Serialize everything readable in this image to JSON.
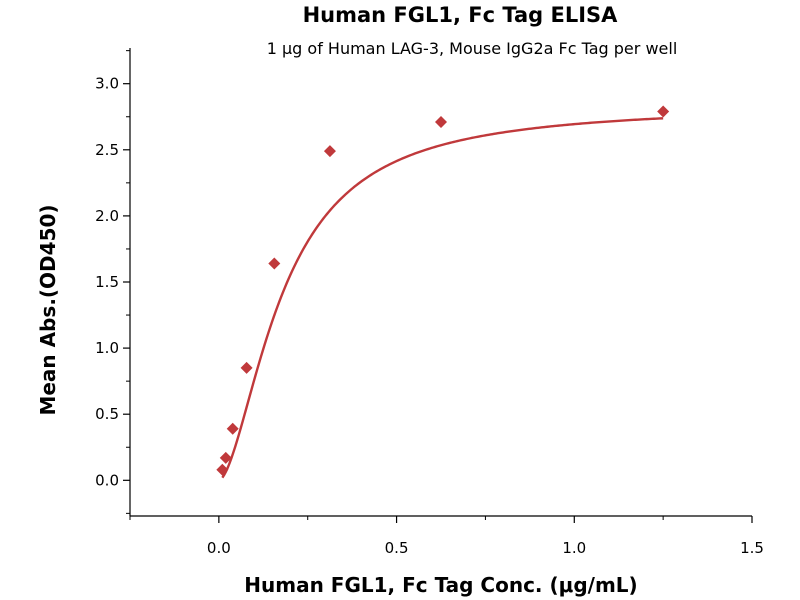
{
  "chart_data": {
    "type": "scatter",
    "title": "Human FGL1, Fc Tag ELISA",
    "subtitle": "1 μg of Human LAG-3, Mouse IgG2a Fc Tag per well",
    "xlabel": "Human FGL1, Fc Tag Conc. (μg/mL)",
    "ylabel": "Mean Abs.(OD450)",
    "xlim": [
      -0.25,
      1.5
    ],
    "ylim": [
      -0.27,
      3.27
    ],
    "x_ticks": [
      0.0,
      0.5,
      1.0,
      1.5
    ],
    "x_tick_labels": [
      "0.0",
      "0.5",
      "1.0",
      "1.5"
    ],
    "y_ticks": [
      0.0,
      0.5,
      1.0,
      1.5,
      2.0,
      2.5,
      3.0
    ],
    "y_tick_labels": [
      "0.0",
      "0.5",
      "1.0",
      "1.5",
      "2.0",
      "2.5",
      "3.0"
    ],
    "grid": false,
    "legend": "none",
    "series": [
      {
        "marker": "diamond",
        "color": "#c0393b",
        "x": [
          0.0098,
          0.0195,
          0.039,
          0.078,
          0.156,
          0.3125,
          0.625,
          1.25
        ],
        "y": [
          0.08,
          0.17,
          0.39,
          0.85,
          1.64,
          2.49,
          2.71,
          2.79
        ]
      }
    ],
    "fit_curve": {
      "type": "4PL",
      "color": "#c0393b",
      "bottom": 0.0,
      "top": 2.84,
      "ec50": 0.18,
      "hill": 1.7
    }
  }
}
